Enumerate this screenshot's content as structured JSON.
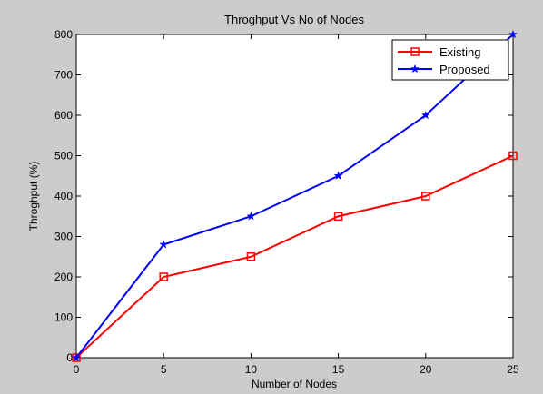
{
  "chart_data": {
    "type": "line",
    "title": "Throghput Vs No of Nodes",
    "xlabel": "Number of Nodes",
    "ylabel": "Throghput (%)",
    "x": [
      0,
      5,
      10,
      15,
      20,
      25
    ],
    "xlim": [
      0,
      25
    ],
    "ylim": [
      0,
      800
    ],
    "xticks": [
      0,
      5,
      10,
      15,
      20,
      25
    ],
    "yticks": [
      0,
      100,
      200,
      300,
      400,
      500,
      600,
      700,
      800
    ],
    "grid": false,
    "legend_position": "top-right",
    "series": [
      {
        "name": "Existing",
        "values": [
          0,
          200,
          250,
          350,
          400,
          500
        ],
        "color": "#ff0000",
        "marker": "square"
      },
      {
        "name": "Proposed",
        "values": [
          0,
          280,
          350,
          450,
          600,
          800
        ],
        "color": "#0000ff",
        "marker": "star"
      }
    ]
  }
}
